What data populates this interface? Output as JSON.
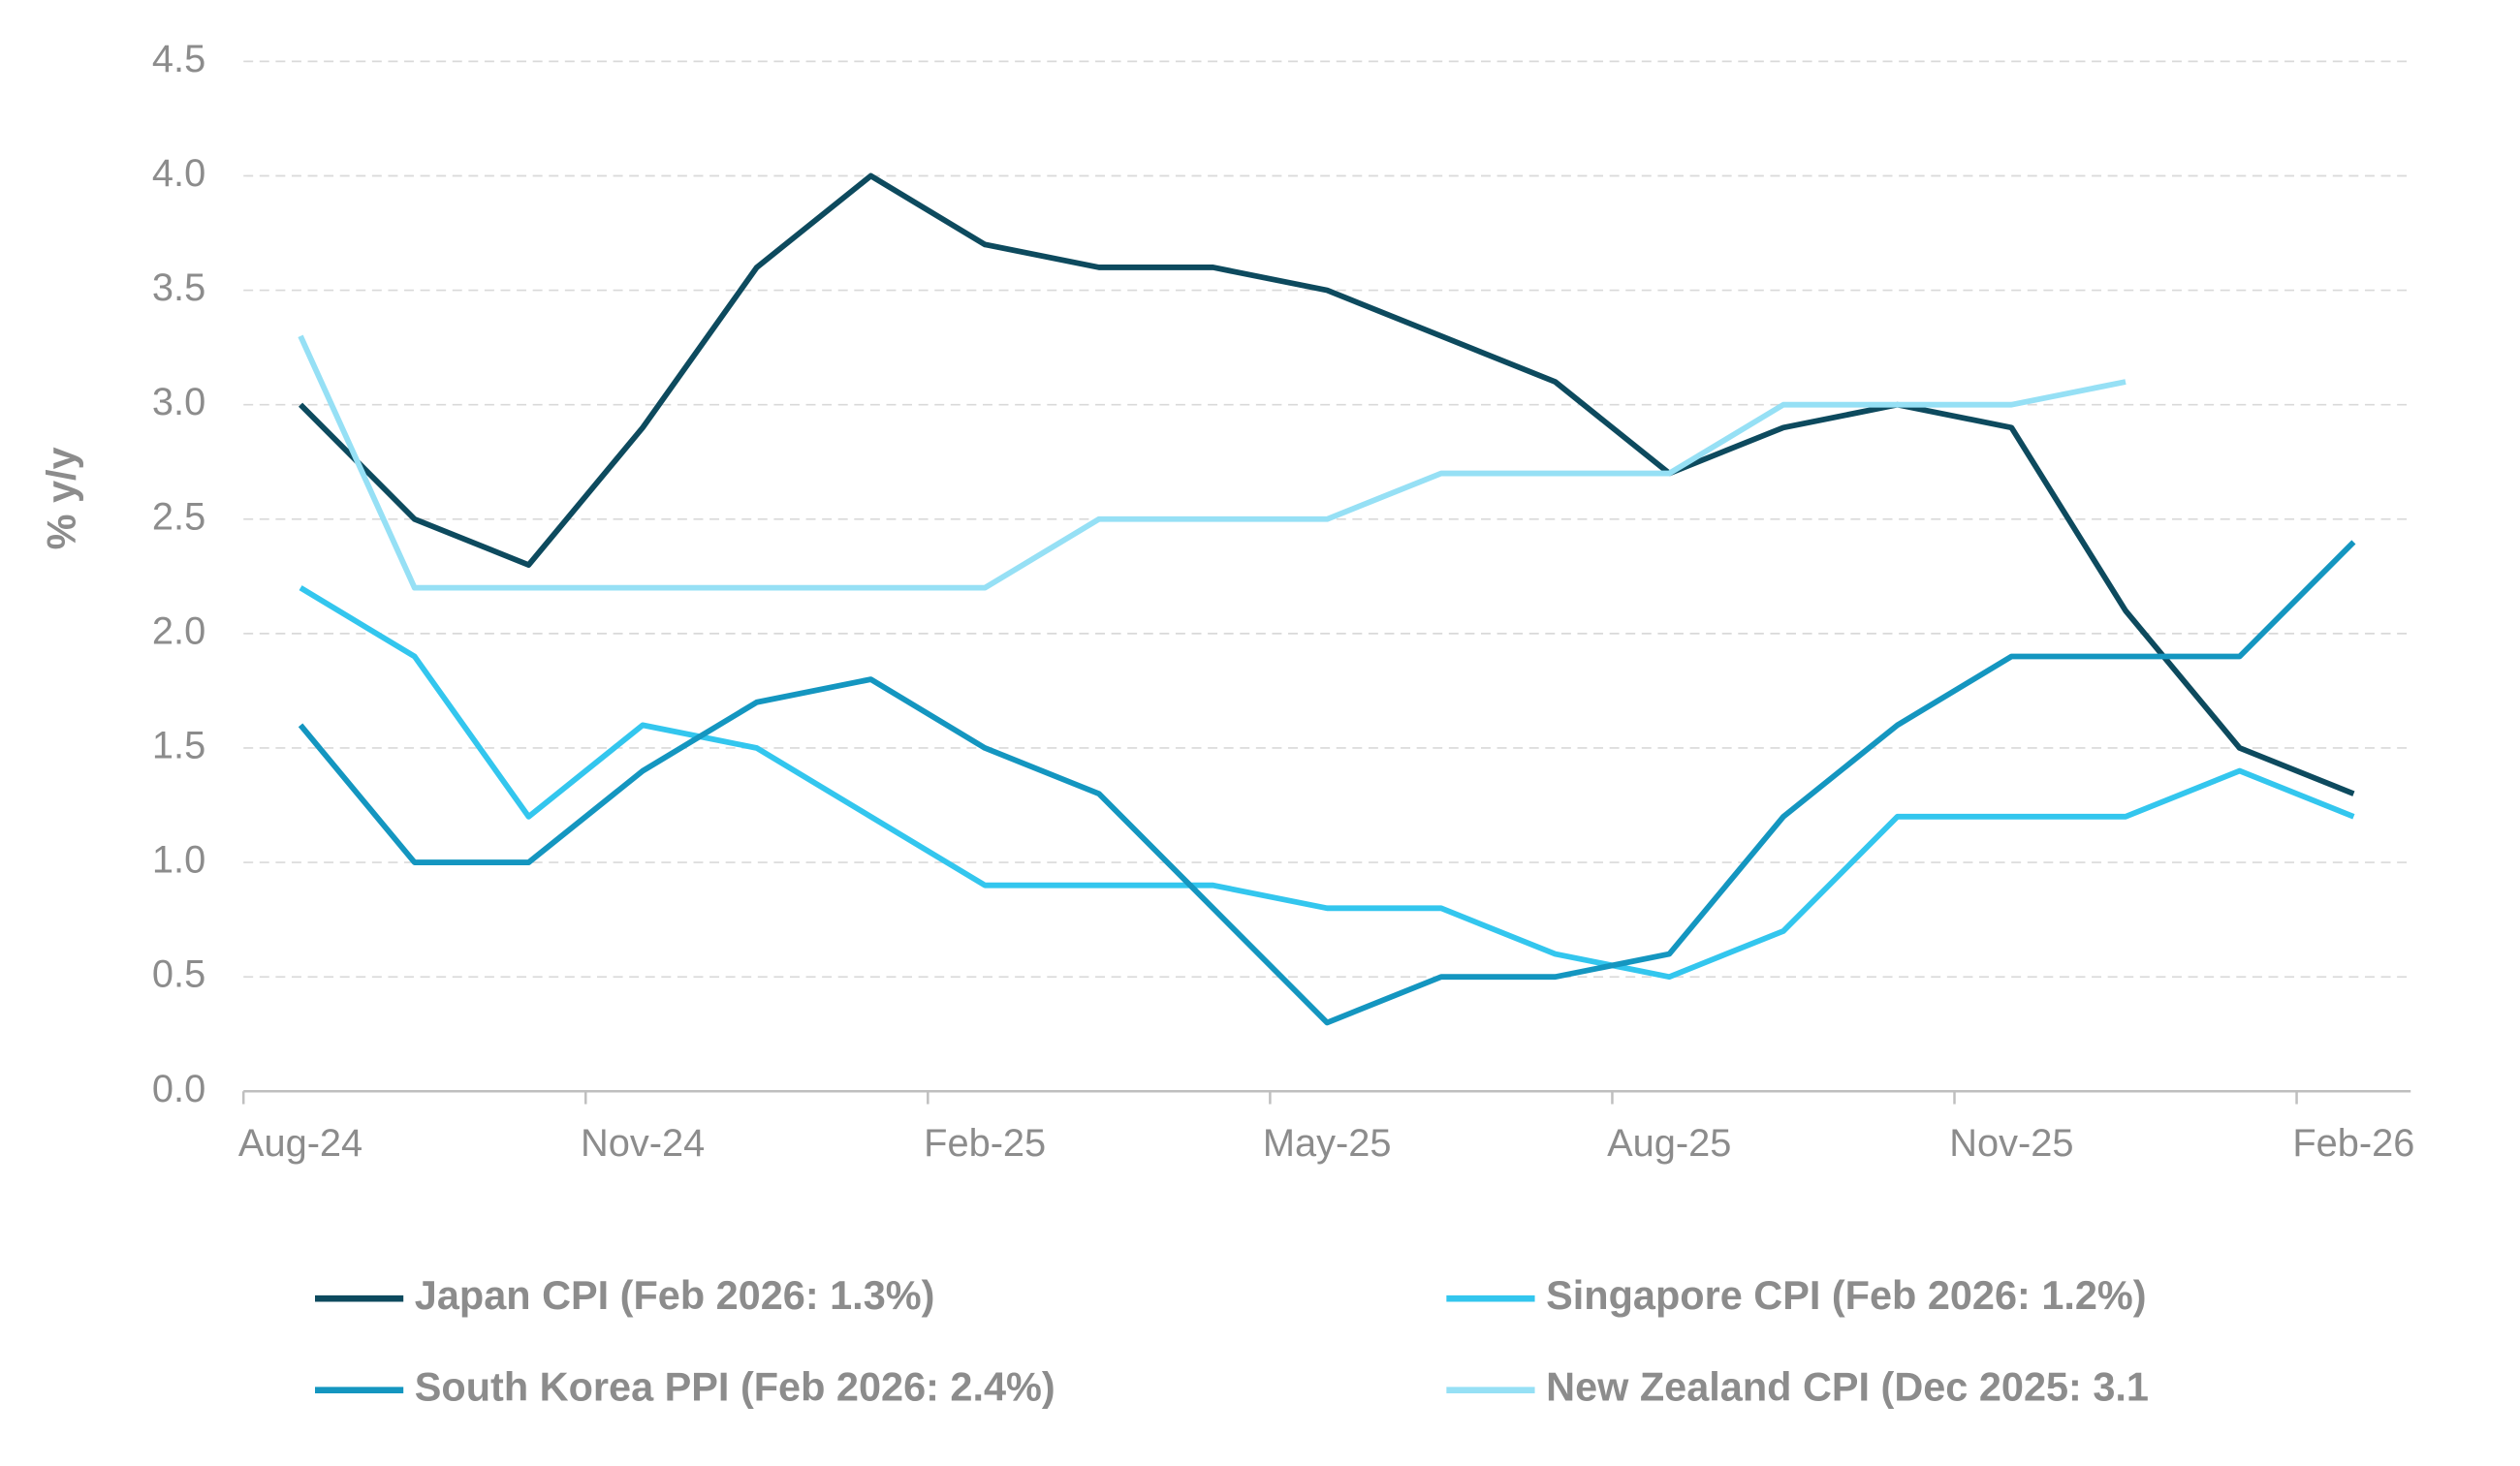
{
  "chart_data": {
    "type": "line",
    "y_label": "% y/y",
    "categories": [
      "Aug-24",
      null,
      null,
      "Nov-24",
      null,
      null,
      "Feb-25",
      null,
      null,
      "May-25",
      null,
      null,
      "Aug-25",
      null,
      null,
      "Nov-25",
      null,
      null,
      "Feb-26"
    ],
    "ylim": [
      0,
      4.5
    ],
    "yticks": [
      {
        "value": 0,
        "label": "0.0"
      },
      {
        "value": 0.5,
        "label": "0.5"
      },
      {
        "value": 1,
        "label": "1.0"
      },
      {
        "value": 1.5,
        "label": "1.5"
      },
      {
        "value": 2,
        "label": "2.0"
      },
      {
        "value": 2.5,
        "label": "2.5"
      },
      {
        "value": 3,
        "label": "3.0"
      },
      {
        "value": 3.5,
        "label": "3.5"
      },
      {
        "value": 4,
        "label": "4.0"
      },
      {
        "value": 4.5,
        "label": "4.5"
      }
    ],
    "grid": true,
    "series": [
      {
        "name": "Japan CPI (Feb 2026: 1.3%)",
        "color": "#0d4a5e",
        "values": [
          3.0,
          2.5,
          2.3,
          2.9,
          3.6,
          4.0,
          3.7,
          3.6,
          3.6,
          3.5,
          3.3,
          3.1,
          2.7,
          2.9,
          3.0,
          2.9,
          2.1,
          1.5,
          1.3
        ]
      },
      {
        "name": "Singapore CPI (Feb 2026: 1.2%)",
        "color": "#33c6ee",
        "values": [
          2.2,
          1.9,
          1.2,
          1.6,
          1.5,
          1.2,
          0.9,
          0.9,
          0.9,
          0.8,
          0.8,
          0.6,
          0.5,
          0.7,
          1.2,
          1.2,
          1.2,
          1.4,
          1.2
        ]
      },
      {
        "name": "South Korea PPI (Feb 2026: 2.4%)",
        "color": "#1496c0",
        "values": [
          1.6,
          1.0,
          1.0,
          1.4,
          1.7,
          1.8,
          1.5,
          1.3,
          0.8,
          0.3,
          0.5,
          0.5,
          0.6,
          1.2,
          1.6,
          1.9,
          1.9,
          1.9,
          2.4
        ]
      },
      {
        "name": "New Zealand CPI (Dec 2025: 3.1",
        "color": "#96e0f5",
        "values": [
          3.3,
          2.2,
          2.2,
          2.2,
          2.2,
          2.2,
          2.2,
          2.5,
          2.5,
          2.5,
          2.7,
          2.7,
          2.7,
          3.0,
          3.0,
          3.0,
          3.1,
          null,
          null
        ]
      }
    ]
  }
}
